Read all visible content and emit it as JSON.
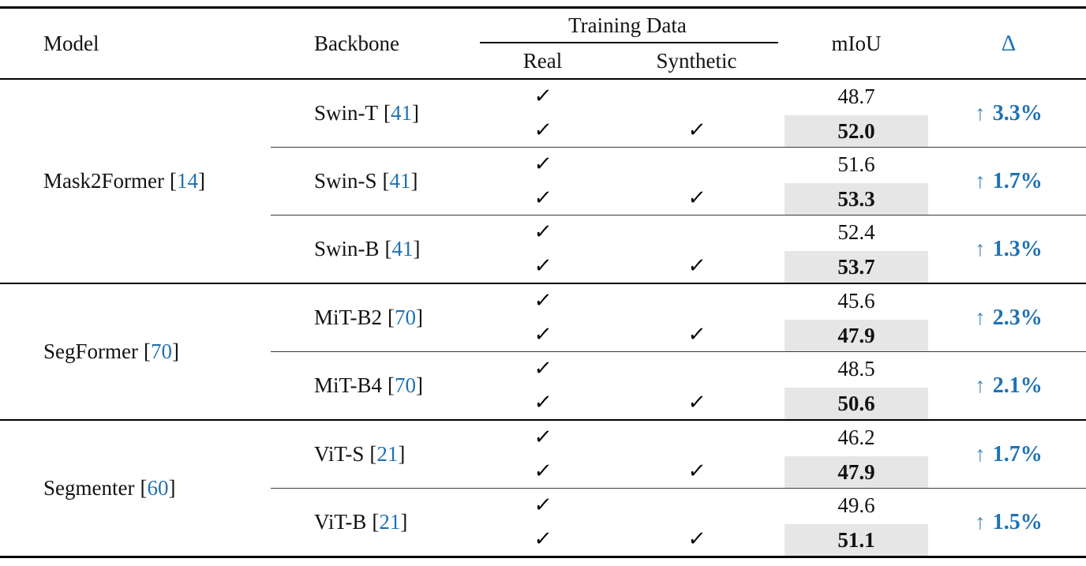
{
  "glyphs": {
    "check": "✓",
    "up_arrow": "↑",
    "lbracket": "[",
    "rbracket": "]"
  },
  "colors": {
    "accent_blue": "#1f72b4",
    "highlight_gray": "#e6e6e6"
  },
  "header": {
    "model": "Model",
    "backbone": "Backbone",
    "training_data": "Training Data",
    "real": "Real",
    "synthetic": "Synthetic",
    "miou": "mIoU",
    "delta": "Δ"
  },
  "groups": [
    {
      "model": {
        "name": "Mask2Former",
        "cite": "14"
      },
      "blocks": [
        {
          "backbone": {
            "name": "Swin-T",
            "cite": "41"
          },
          "rows": [
            {
              "real": true,
              "synthetic": false,
              "miou": "48.7",
              "best": false
            },
            {
              "real": true,
              "synthetic": true,
              "miou": "52.0",
              "best": true
            }
          ],
          "delta": "3.3%"
        },
        {
          "backbone": {
            "name": "Swin-S",
            "cite": "41"
          },
          "rows": [
            {
              "real": true,
              "synthetic": false,
              "miou": "51.6",
              "best": false
            },
            {
              "real": true,
              "synthetic": true,
              "miou": "53.3",
              "best": true
            }
          ],
          "delta": "1.7%"
        },
        {
          "backbone": {
            "name": "Swin-B",
            "cite": "41"
          },
          "rows": [
            {
              "real": true,
              "synthetic": false,
              "miou": "52.4",
              "best": false
            },
            {
              "real": true,
              "synthetic": true,
              "miou": "53.7",
              "best": true
            }
          ],
          "delta": "1.3%"
        }
      ]
    },
    {
      "model": {
        "name": "SegFormer",
        "cite": "70"
      },
      "blocks": [
        {
          "backbone": {
            "name": "MiT-B2",
            "cite": "70"
          },
          "rows": [
            {
              "real": true,
              "synthetic": false,
              "miou": "45.6",
              "best": false
            },
            {
              "real": true,
              "synthetic": true,
              "miou": "47.9",
              "best": true
            }
          ],
          "delta": "2.3%"
        },
        {
          "backbone": {
            "name": "MiT-B4",
            "cite": "70"
          },
          "rows": [
            {
              "real": true,
              "synthetic": false,
              "miou": "48.5",
              "best": false
            },
            {
              "real": true,
              "synthetic": true,
              "miou": "50.6",
              "best": true
            }
          ],
          "delta": "2.1%"
        }
      ]
    },
    {
      "model": {
        "name": "Segmenter",
        "cite": "60"
      },
      "blocks": [
        {
          "backbone": {
            "name": "ViT-S",
            "cite": "21"
          },
          "rows": [
            {
              "real": true,
              "synthetic": false,
              "miou": "46.2",
              "best": false
            },
            {
              "real": true,
              "synthetic": true,
              "miou": "47.9",
              "best": true
            }
          ],
          "delta": "1.7%"
        },
        {
          "backbone": {
            "name": "ViT-B",
            "cite": "21"
          },
          "rows": [
            {
              "real": true,
              "synthetic": false,
              "miou": "49.6",
              "best": false
            },
            {
              "real": true,
              "synthetic": true,
              "miou": "51.1",
              "best": true
            }
          ],
          "delta": "1.5%"
        }
      ]
    }
  ]
}
